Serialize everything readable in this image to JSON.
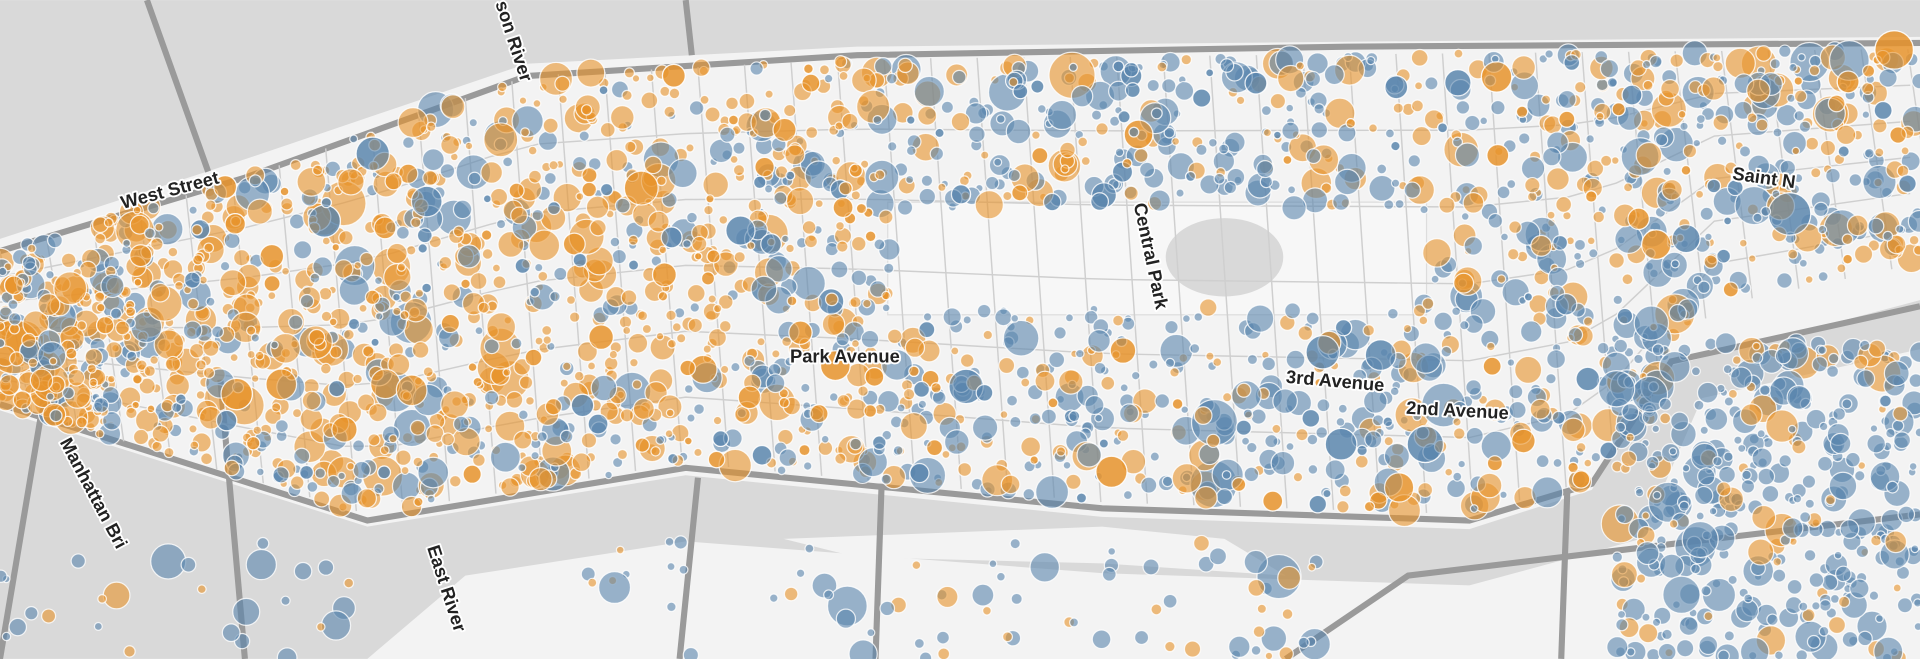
{
  "map": {
    "labels": [
      "West Street",
      "son River",
      "Central Park",
      "3rd Avenue",
      "2nd Avenue",
      "East River",
      "Manhattan Bri",
      "Park Avenue",
      "Saint N"
    ]
  }
}
